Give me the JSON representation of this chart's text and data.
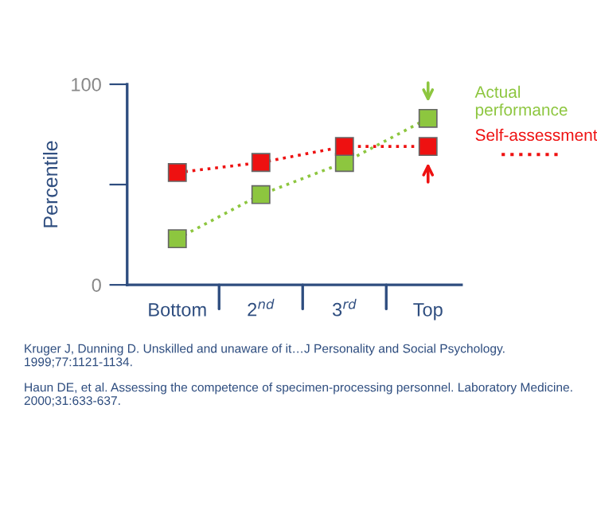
{
  "chart_data": {
    "type": "line",
    "ylabel": "Percentile",
    "categories": [
      "Bottom",
      "2$^{nd}$",
      "3$^{rd}$",
      "Top"
    ],
    "series": [
      {
        "name": "Actual performance",
        "color": "#8dc63f",
        "values": [
          23,
          45,
          61,
          83
        ]
      },
      {
        "name": "Self-assessment",
        "color": "#ee1111",
        "values": [
          56,
          61,
          69,
          69
        ]
      }
    ],
    "ylim": [
      0,
      100
    ],
    "yticks": [
      0,
      {
        "value": 50,
        "label": null
      },
      100
    ],
    "marker": "square",
    "line_style": "dotted",
    "grid": false,
    "annotations": [
      "Kruger J, Dunning D. Unskilled and unaware of it…J Personality and Social Psychology. 1999;77:1121-1134.",
      "Haun DE, et al. Assessing the competence of specimen-processing personnel. Laboratory Medicine. 2000;31:633-637."
    ]
  }
}
